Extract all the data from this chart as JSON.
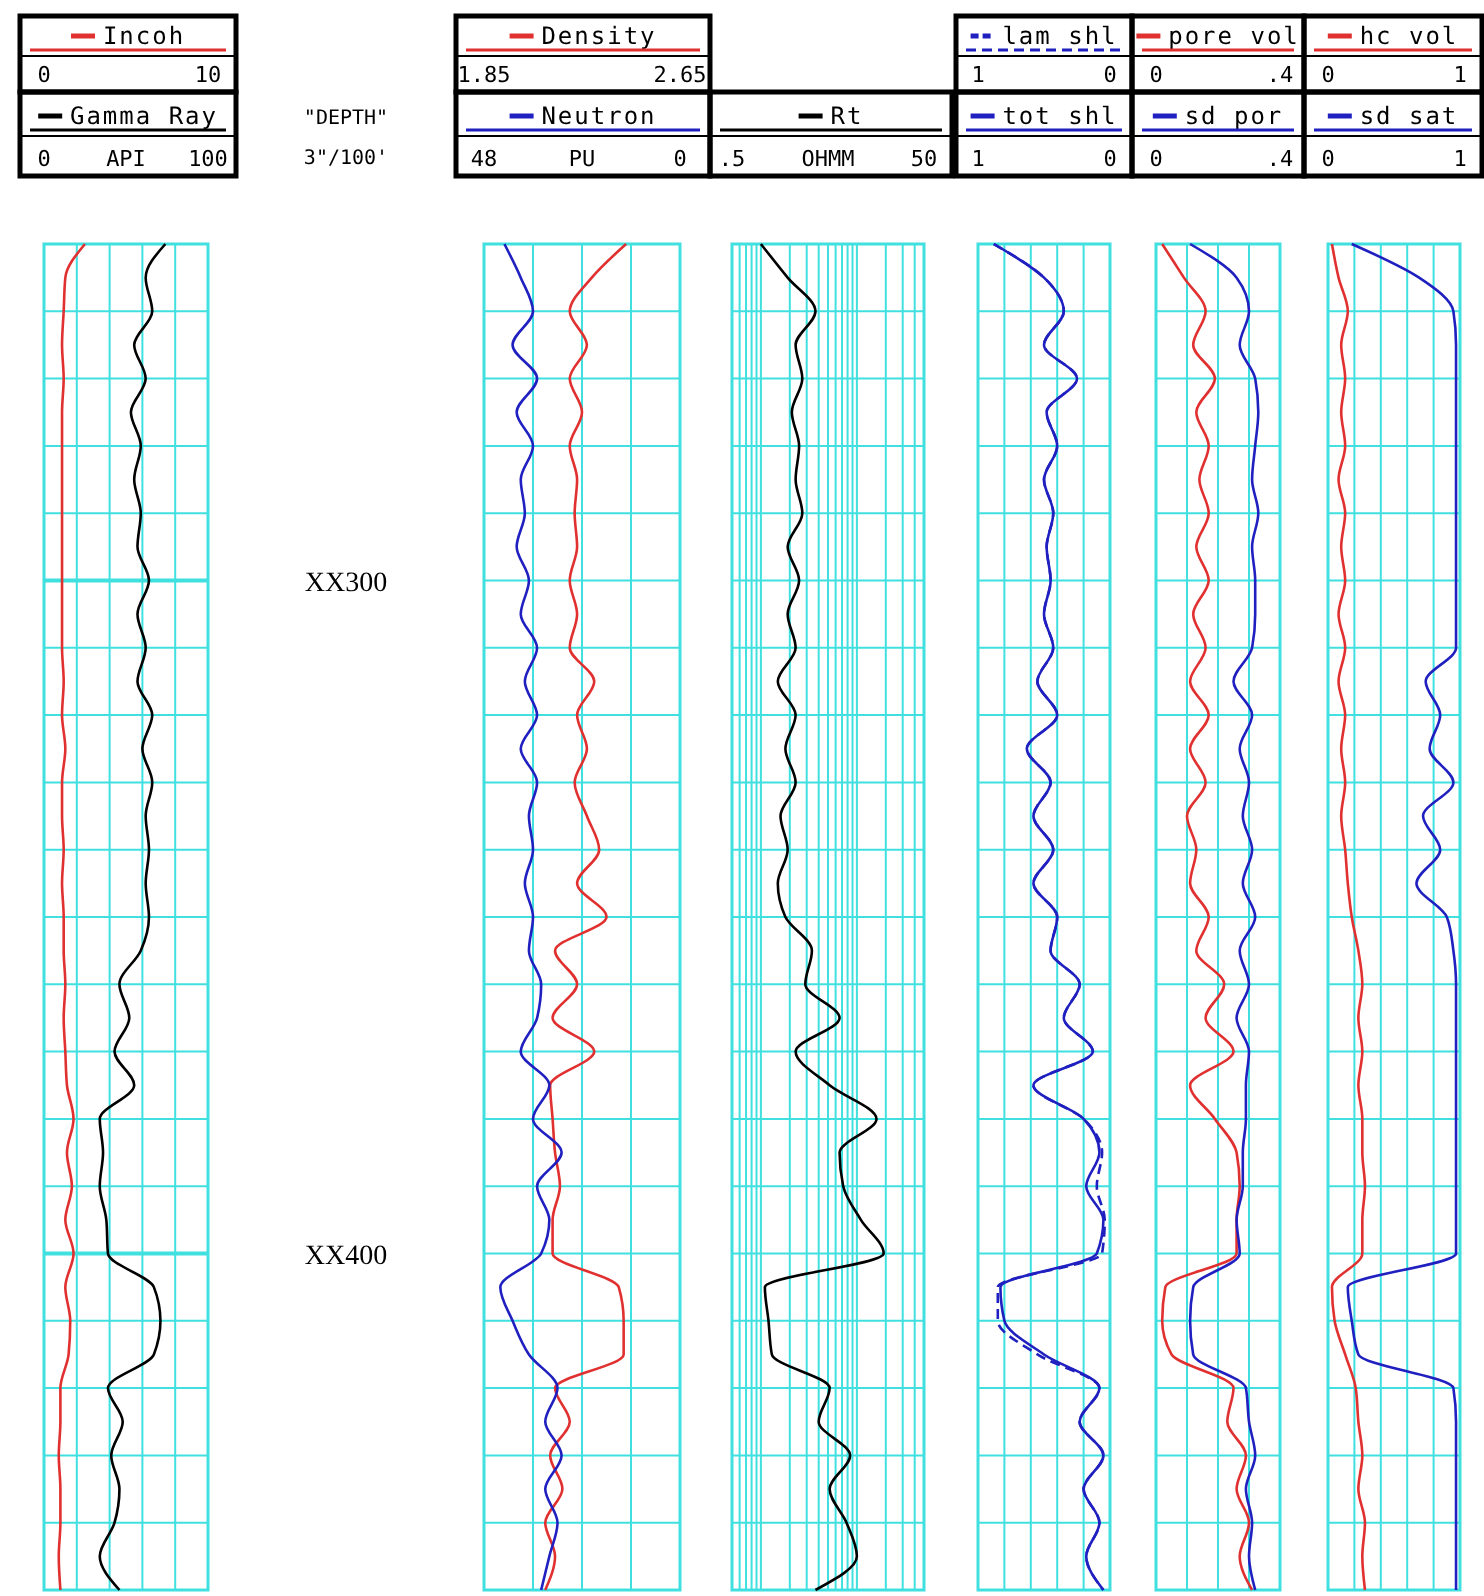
{
  "chart_data": [
    {
      "type": "line",
      "orientation": "horizontal",
      "categories": [
        null,
        null,
        null,
        null,
        null,
        null,
        null,
        null,
        null,
        null,
        "XX300",
        null,
        null,
        null,
        null,
        null,
        null,
        null,
        null,
        null,
        null,
        null,
        null,
        null,
        null,
        null,
        null,
        null,
        null,
        null,
        "XX400",
        null,
        null,
        null,
        null,
        null,
        null,
        null,
        null,
        null,
        null
      ],
      "xlim": [
        0,
        100
      ],
      "xticks": [
        0,
        {
          "value": 20,
          "label": null
        },
        {
          "value": 40,
          "label": null
        },
        {
          "value": 60,
          "label": null
        },
        {
          "value": 80,
          "label": null
        },
        100
      ],
      "xlabel": "API",
      "x2lim": [
        0,
        10
      ],
      "x2ticks": [
        0,
        10
      ],
      "grid": true,
      "legend": "top",
      "annotations": [
        "\"DEPTH\"",
        "3\"/100'"
      ],
      "series": [
        {
          "name": "Incoh",
          "color": "#e03030",
          "axis": "x2",
          "values": [
            2.5,
            1.3,
            1.2,
            1.1,
            1.2,
            1.1,
            1.1,
            1.1,
            1.1,
            1.1,
            1.1,
            1.1,
            1.1,
            1.2,
            1.1,
            1.3,
            1.1,
            1.1,
            1.2,
            1.1,
            1.2,
            1.2,
            1.3,
            1.2,
            1.3,
            1.4,
            1.8,
            1.4,
            1.7,
            1.3,
            1.8,
            1.3,
            1.6,
            1.5,
            1.0,
            1.0,
            0.9,
            1.0,
            1.0,
            0.9,
            1.0
          ]
        },
        {
          "name": "Gamma Ray",
          "color": "#000000",
          "values": [
            74,
            62,
            66,
            55,
            62,
            53,
            59,
            55,
            59,
            57,
            64,
            57,
            62,
            57,
            66,
            60,
            66,
            62,
            64,
            62,
            64,
            59,
            46,
            52,
            43,
            55,
            34,
            36,
            34,
            38,
            39,
            67,
            71,
            67,
            39,
            48,
            41,
            46,
            43,
            34,
            46
          ]
        }
      ]
    },
    {
      "type": "line",
      "orientation": "horizontal",
      "categories": [
        null,
        null,
        null,
        null,
        null,
        null,
        null,
        null,
        null,
        null,
        null,
        null,
        null,
        null,
        null,
        null,
        null,
        null,
        null,
        null,
        null,
        null,
        null,
        null,
        null,
        null,
        null,
        null,
        null,
        null,
        null,
        null,
        null,
        null,
        null,
        null,
        null,
        null,
        null,
        null,
        null
      ],
      "xlabel": "PU",
      "xlim": [
        48,
        0
      ],
      "xticks": [
        48,
        {
          "value": 36,
          "label": null
        },
        {
          "value": 24,
          "label": null
        },
        {
          "value": 12,
          "label": null
        },
        0
      ],
      "x2lim": [
        1.85,
        2.65
      ],
      "x2ticks": [
        1.85,
        2.65
      ],
      "tick_labels": "x",
      "grid": true,
      "legend": "top",
      "series": [
        {
          "name": "Density",
          "color": "#e03030",
          "axis": "x2",
          "values": [
            2.43,
            2.29,
            2.2,
            2.27,
            2.2,
            2.25,
            2.2,
            2.23,
            2.22,
            2.23,
            2.2,
            2.23,
            2.2,
            2.3,
            2.23,
            2.27,
            2.22,
            2.27,
            2.32,
            2.23,
            2.35,
            2.14,
            2.23,
            2.13,
            2.3,
            2.12,
            2.13,
            2.14,
            2.16,
            2.13,
            2.13,
            2.4,
            2.42,
            2.42,
            2.14,
            2.2,
            2.12,
            2.17,
            2.1,
            2.14,
            2.1
          ]
        },
        {
          "name": "Neutron",
          "color": "#2020c0",
          "values": [
            43,
            39,
            36,
            41,
            35,
            40,
            36,
            39,
            38,
            40,
            37,
            39,
            35,
            38,
            35,
            39,
            35,
            37,
            36,
            38,
            36,
            37,
            34,
            35,
            39,
            32,
            36,
            29,
            35,
            32,
            34,
            44,
            41,
            37,
            30,
            33,
            29,
            33,
            30,
            32,
            34
          ]
        }
      ]
    },
    {
      "type": "line",
      "orientation": "horizontal",
      "categories": [
        null,
        null,
        null,
        null,
        null,
        null,
        null,
        null,
        null,
        null,
        null,
        null,
        null,
        null,
        null,
        null,
        null,
        null,
        null,
        null,
        null,
        null,
        null,
        null,
        null,
        null,
        null,
        null,
        null,
        null,
        null,
        null,
        null,
        null,
        null,
        null,
        null,
        null,
        null,
        null,
        null
      ],
      "log": "x",
      "xlim": [
        0.5,
        50
      ],
      "xlabel": "OHMM",
      "xticks": [
        {
          "value": 0.5,
          "label": ".5"
        },
        {
          "value": 0.6,
          "label": null
        },
        {
          "value": 0.7,
          "label": null
        },
        {
          "value": 0.8,
          "label": null
        },
        {
          "value": 0.9,
          "label": null
        },
        {
          "value": 1,
          "label": null
        },
        {
          "value": 2,
          "label": null
        },
        {
          "value": 3,
          "label": null
        },
        {
          "value": 4,
          "label": null
        },
        {
          "value": 5,
          "label": null
        },
        {
          "value": 6,
          "label": null
        },
        {
          "value": 7,
          "label": null
        },
        {
          "value": 8,
          "label": null
        },
        {
          "value": 9,
          "label": null
        },
        {
          "value": 10,
          "label": null
        },
        {
          "value": 20,
          "label": null
        },
        {
          "value": 30,
          "label": null
        },
        {
          "value": 40,
          "label": null
        },
        50
      ],
      "tick_labels": "x",
      "grid": true,
      "legend": "top",
      "series": [
        {
          "name": "Rt",
          "color": "#000000",
          "values": [
            1.0,
            1.9,
            3.7,
            2.3,
            2.7,
            2.1,
            2.5,
            2.3,
            2.7,
            1.9,
            2.5,
            1.9,
            2.3,
            1.5,
            2.3,
            1.8,
            2.3,
            1.6,
            1.9,
            1.5,
            1.8,
            3.4,
            2.9,
            6.6,
            2.3,
            5.2,
            16,
            6.6,
            7.2,
            11,
            19,
            1.1,
            1.2,
            1.3,
            5.2,
            4.0,
            8.5,
            5.2,
            7.8,
            10,
            3.7
          ]
        }
      ]
    },
    {
      "type": "line",
      "orientation": "horizontal",
      "categories": [
        null,
        null,
        null,
        null,
        null,
        null,
        null,
        null,
        null,
        null,
        null,
        null,
        null,
        null,
        null,
        null,
        null,
        null,
        null,
        null,
        null,
        null,
        null,
        null,
        null,
        null,
        null,
        null,
        null,
        null,
        null,
        null,
        null,
        null,
        null,
        null,
        null,
        null,
        null,
        null,
        null
      ],
      "xlim": [
        1,
        0
      ],
      "xticks": [
        1,
        {
          "value": 0.8,
          "label": null
        },
        {
          "value": 0.6,
          "label": null
        },
        {
          "value": 0.4,
          "label": null
        },
        {
          "value": 0.2,
          "label": null
        },
        0
      ],
      "x2lim": [
        1,
        0
      ],
      "x2ticks": [
        1,
        0
      ],
      "tick_labels": "x",
      "grid": true,
      "legend": "top",
      "series": [
        {
          "name": "lam shl",
          "color": "#2020c0",
          "axis": "x2",
          "line_style": "dashed",
          "values": [
            0.88,
            0.5,
            0.35,
            0.5,
            0.25,
            0.48,
            0.4,
            0.5,
            0.43,
            0.48,
            0.45,
            0.5,
            0.43,
            0.55,
            0.4,
            0.63,
            0.45,
            0.58,
            0.43,
            0.58,
            0.4,
            0.45,
            0.23,
            0.35,
            0.13,
            0.58,
            0.2,
            0.06,
            0.1,
            0.04,
            0.06,
            0.85,
            0.85,
            0.55,
            0.08,
            0.23,
            0.05,
            0.2,
            0.08,
            0.18,
            0.05
          ]
        },
        {
          "name": "tot shl",
          "color": "#2020c0",
          "values": [
            0.88,
            0.5,
            0.35,
            0.5,
            0.25,
            0.48,
            0.4,
            0.5,
            0.43,
            0.48,
            0.45,
            0.5,
            0.43,
            0.55,
            0.4,
            0.63,
            0.45,
            0.58,
            0.43,
            0.58,
            0.4,
            0.45,
            0.23,
            0.35,
            0.13,
            0.58,
            0.2,
            0.08,
            0.18,
            0.05,
            0.1,
            0.83,
            0.8,
            0.5,
            0.08,
            0.23,
            0.05,
            0.2,
            0.08,
            0.18,
            0.05
          ]
        }
      ]
    },
    {
      "type": "line",
      "orientation": "horizontal",
      "categories": [
        null,
        null,
        null,
        null,
        null,
        null,
        null,
        null,
        null,
        null,
        null,
        null,
        null,
        null,
        null,
        null,
        null,
        null,
        null,
        null,
        null,
        null,
        null,
        null,
        null,
        null,
        null,
        null,
        null,
        null,
        null,
        null,
        null,
        null,
        null,
        null,
        null,
        null,
        null,
        null,
        null
      ],
      "xlim": [
        0,
        0.4
      ],
      "xticks": [
        0,
        {
          "value": 0.1,
          "label": null
        },
        {
          "value": 0.2,
          "label": null
        },
        {
          "value": 0.3,
          "label": null
        },
        {
          "value": 0.4,
          "label": ".4"
        }
      ],
      "x2lim": [
        0,
        0.4
      ],
      "x2ticks": [
        0,
        {
          "value": 0.4,
          "label": ".4"
        }
      ],
      "tick_labels": "x",
      "grid": true,
      "legend": "top",
      "series": [
        {
          "name": "pore vol",
          "color": "#e03030",
          "axis": "x2",
          "values": [
            0.02,
            0.09,
            0.16,
            0.12,
            0.19,
            0.13,
            0.17,
            0.14,
            0.17,
            0.13,
            0.17,
            0.12,
            0.16,
            0.11,
            0.17,
            0.11,
            0.16,
            0.1,
            0.13,
            0.11,
            0.17,
            0.13,
            0.22,
            0.16,
            0.25,
            0.11,
            0.19,
            0.26,
            0.27,
            0.26,
            0.26,
            0.03,
            0.02,
            0.05,
            0.25,
            0.23,
            0.29,
            0.26,
            0.3,
            0.27,
            0.31
          ]
        },
        {
          "name": "sd por",
          "color": "#2020c0",
          "values": [
            0.11,
            0.26,
            0.3,
            0.27,
            0.32,
            0.33,
            0.32,
            0.31,
            0.33,
            0.31,
            0.32,
            0.32,
            0.31,
            0.25,
            0.31,
            0.27,
            0.3,
            0.28,
            0.31,
            0.28,
            0.32,
            0.27,
            0.3,
            0.26,
            0.3,
            0.29,
            0.29,
            0.28,
            0.28,
            0.26,
            0.27,
            0.12,
            0.11,
            0.12,
            0.29,
            0.3,
            0.32,
            0.29,
            0.31,
            0.3,
            0.32
          ]
        }
      ]
    },
    {
      "type": "line",
      "orientation": "horizontal",
      "categories": [
        null,
        null,
        null,
        null,
        null,
        null,
        null,
        null,
        null,
        null,
        null,
        null,
        null,
        null,
        null,
        null,
        null,
        null,
        null,
        null,
        null,
        null,
        null,
        null,
        null,
        null,
        null,
        null,
        null,
        null,
        null,
        null,
        null,
        null,
        null,
        null,
        null,
        null,
        null,
        null,
        null
      ],
      "xlim": [
        0,
        1
      ],
      "xticks": [
        0,
        {
          "value": 0.2,
          "label": null
        },
        {
          "value": 0.4,
          "label": null
        },
        {
          "value": 0.6,
          "label": null
        },
        {
          "value": 0.8,
          "label": null
        },
        1
      ],
      "x2lim": [
        0,
        1
      ],
      "x2ticks": [
        0,
        1
      ],
      "tick_labels": "x",
      "grid": true,
      "legend": "top",
      "series": [
        {
          "name": "hc vol",
          "color": "#e03030",
          "axis": "x2",
          "values": [
            0.03,
            0.08,
            0.15,
            0.1,
            0.13,
            0.1,
            0.13,
            0.08,
            0.13,
            0.1,
            0.13,
            0.08,
            0.13,
            0.08,
            0.13,
            0.1,
            0.13,
            0.1,
            0.13,
            0.15,
            0.18,
            0.23,
            0.26,
            0.23,
            0.26,
            0.23,
            0.26,
            0.26,
            0.28,
            0.26,
            0.26,
            0.03,
            0.05,
            0.13,
            0.21,
            0.23,
            0.26,
            0.23,
            0.28,
            0.26,
            0.28
          ]
        },
        {
          "name": "sd sat",
          "color": "#2020c0",
          "values": [
            0.18,
            0.69,
            0.95,
            0.97,
            0.97,
            0.97,
            0.97,
            0.97,
            0.97,
            0.97,
            0.97,
            0.97,
            0.97,
            0.74,
            0.85,
            0.77,
            0.95,
            0.72,
            0.85,
            0.67,
            0.9,
            0.95,
            0.97,
            0.97,
            0.97,
            0.97,
            0.97,
            0.97,
            0.97,
            0.97,
            0.97,
            0.15,
            0.18,
            0.23,
            0.95,
            0.97,
            0.97,
            0.97,
            0.97,
            0.97,
            0.97
          ]
        }
      ]
    }
  ]
}
